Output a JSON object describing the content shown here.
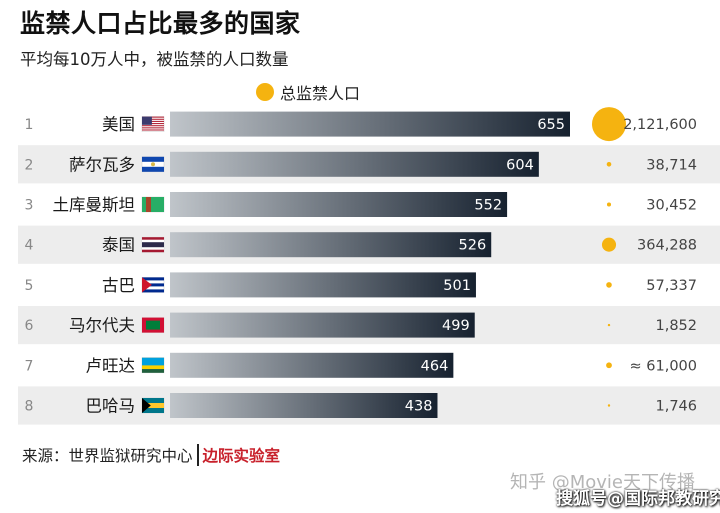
{
  "title": "监禁人口占比最多的国家",
  "subtitle": "平均每10万人中，被监禁的人口数量",
  "legend": {
    "label": "总监禁人口",
    "color": "#f5b310"
  },
  "source": {
    "prefix": "来源：世界监狱研究中心",
    "brand": "边际实验室"
  },
  "watermark": {
    "line1": "知乎 @Movie天下传播",
    "line2": "搜狐号@国际邦教研究"
  },
  "colors": {
    "bar_dark": "#16212f",
    "bar_light": "#c0c5ca",
    "stripe": "#ededed",
    "dot": "#f5b310"
  },
  "chart_data": {
    "type": "bar",
    "orientation": "horizontal",
    "title": "监禁人口占比最多的国家",
    "subtitle": "平均每10万人中，被监禁的人口数量",
    "ranks": [
      "1",
      "2",
      "3",
      "4",
      "5",
      "6",
      "7",
      "8"
    ],
    "categories": [
      "美国",
      "萨尔瓦多",
      "土库曼斯坦",
      "泰国",
      "古巴",
      "马尔代夫",
      "卢旺达",
      "巴哈马"
    ],
    "values": [
      655,
      604,
      552,
      526,
      501,
      499,
      464,
      438
    ],
    "value_labels": [
      "655",
      "604",
      "552",
      "526",
      "501",
      "499",
      "464",
      "438"
    ],
    "bubble_series": {
      "name": "总监禁人口",
      "values": [
        2121600,
        38714,
        30452,
        364288,
        57337,
        1852,
        61000,
        1746
      ],
      "labels": [
        "2,121,600",
        "38,714",
        "30,452",
        "364,288",
        "57,337",
        "1,852",
        "≈ 61,000",
        "1,746"
      ]
    },
    "flags": [
      "flag-usa-icon",
      "flag-el-salvador-icon",
      "flag-turkmenistan-icon",
      "flag-thailand-icon",
      "flag-cuba-icon",
      "flag-maldives-icon",
      "flag-rwanda-icon",
      "flag-bahamas-icon"
    ],
    "legend_position": "top"
  }
}
